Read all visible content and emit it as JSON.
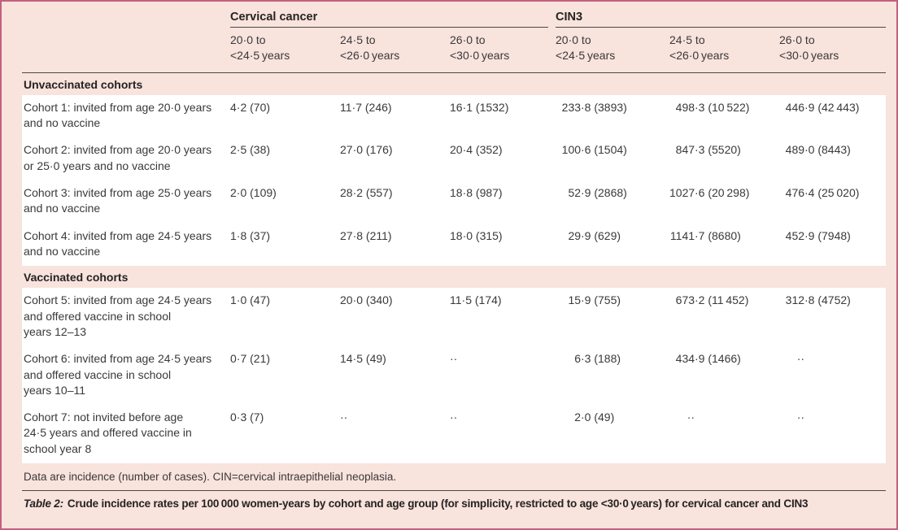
{
  "table": {
    "groups": [
      {
        "label": "Cervical cancer"
      },
      {
        "label": "CIN3"
      }
    ],
    "age_headers": [
      "20·0 to\n<24·5 years",
      "24·5 to\n<26·0 years",
      "26·0 to\n<30·0 years",
      "20·0 to\n<24·5 years",
      "24·5 to\n<26·0 years",
      "26·0 to\n<30·0 years"
    ],
    "sections": [
      {
        "title": "Unvaccinated cohorts",
        "rows": [
          {
            "label": "Cohort 1: invited from age 20·0 years\nand no vaccine",
            "values": [
              "4·2 (70)",
              "11·7 (246)",
              "16·1 (1532)",
              "233·8 (3893)",
              "498·3 (10 522)",
              "446·9 (42 443)"
            ]
          },
          {
            "label": "Cohort 2: invited from age 20·0 years\nor 25·0 years and no vaccine",
            "values": [
              "2·5 (38)",
              "27·0 (176)",
              "20·4 (352)",
              "100·6 (1504)",
              "847·3 (5520)",
              "489·0 (8443)"
            ]
          },
          {
            "label": "Cohort 3: invited from age 25·0 years\nand no vaccine",
            "values": [
              "2·0 (109)",
              "28·2 (557)",
              "18·8 (987)",
              "52·9 (2868)",
              "1027·6 (20 298)",
              "476·4 (25 020)"
            ]
          },
          {
            "label": "Cohort 4: invited from age 24·5 years\nand no vaccine",
            "values": [
              "1·8 (37)",
              "27·8 (211)",
              "18·0 (315)",
              "29·9 (629)",
              "1141·7 (8680)",
              "452·9 (7948)"
            ]
          }
        ]
      },
      {
        "title": "Vaccinated cohorts",
        "rows": [
          {
            "label": "Cohort 5: invited from age 24·5 years\nand offered vaccine in school\nyears 12–13",
            "values": [
              "1·0 (47)",
              "20·0 (340)",
              "11·5 (174)",
              "15·9 (755)",
              "673·2 (11 452)",
              "312·8 (4752)"
            ]
          },
          {
            "label": "Cohort 6: invited from age 24·5 years\nand offered vaccine in school\nyears 10–11",
            "values": [
              "0·7 (21)",
              "14·5 (49)",
              "··",
              "6·3 (188)",
              "434·9 (1466)",
              "··"
            ]
          },
          {
            "label": "Cohort 7: not invited before age\n24·5 years and offered vaccine in\nschool year 8",
            "values": [
              "0·3 (7)",
              "··",
              "··",
              "2·0 (49)",
              "··",
              "··"
            ]
          }
        ]
      }
    ],
    "footnote": "Data are incidence (number of cases). CIN=cervical intraepithelial neoplasia.",
    "caption": {
      "label": "Table 2:",
      "text": "Crude incidence rates per 100 000 women-years by cohort and age group (for simplicity, restricted to age <30·0 years) for cervical cancer and CIN3"
    }
  },
  "colors": {
    "frame_border": "#c3607e",
    "background": "#f8e3dd",
    "row_background": "#ffffff",
    "rule": "#4c4744",
    "body_text": "#3b3838",
    "heading_text": "#262222"
  }
}
